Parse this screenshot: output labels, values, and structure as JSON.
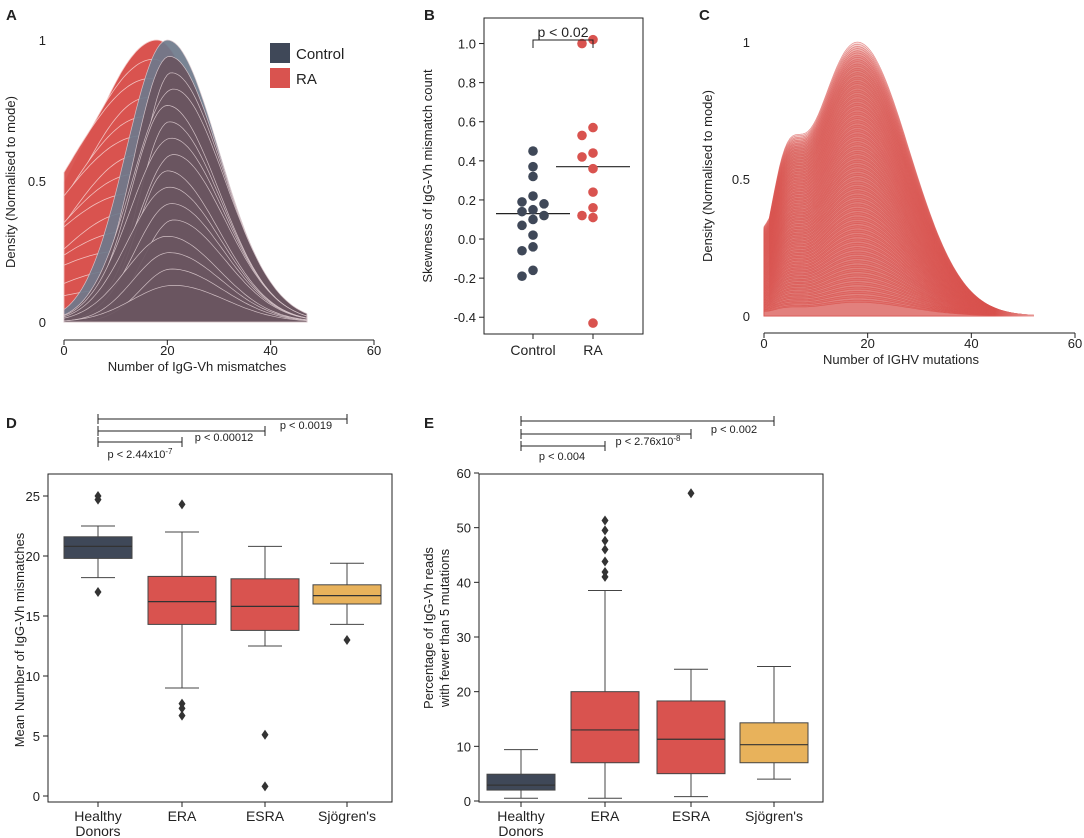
{
  "colors": {
    "control": "#3f4858",
    "ra": "#d9534f",
    "ra_light": "#e8a29e",
    "sjogren": "#e8b25b",
    "overlap": "#6a5560",
    "ink": "#222222"
  },
  "chart_data": [
    {
      "panel": "A",
      "type": "area",
      "title": "",
      "xlabel": "Number of IgG-Vh mismatches",
      "ylabel": "Density (Normalised to mode)",
      "xticks": [
        "0",
        "20",
        "40",
        "60"
      ],
      "yticks": [
        "0",
        "0.5",
        "1"
      ],
      "xlim": [
        0,
        60
      ],
      "ylim": [
        0,
        1
      ],
      "legend": {
        "position": "top-right",
        "entries": [
          "Control",
          "RA"
        ]
      },
      "series": [
        {
          "name": "Control",
          "mode": 20,
          "sd_left": 8,
          "sd_right": 10,
          "range": [
            0,
            47
          ]
        },
        {
          "name": "RA",
          "mode": 18,
          "sd_left": 14,
          "sd_right": 10,
          "range": [
            0,
            47
          ]
        }
      ]
    },
    {
      "panel": "B",
      "type": "scatter",
      "xlabel": "",
      "ylabel": "Skewness of IgG-Vh mismatch count",
      "categories": [
        "Control",
        "RA"
      ],
      "ylim": [
        -0.45,
        1.1
      ],
      "yticks": [
        "-0.4",
        "-0.2",
        "0.0",
        "0.2",
        "0.4",
        "0.6",
        "0.8",
        "1.0"
      ],
      "significance": "p < 0.02",
      "series": [
        {
          "name": "Control",
          "values": [
            0.45,
            0.37,
            0.32,
            0.22,
            0.19,
            0.18,
            0.15,
            0.14,
            0.12,
            0.1,
            0.07,
            0.02,
            -0.04,
            -0.06,
            -0.16,
            -0.19
          ],
          "mean": 0.13
        },
        {
          "name": "RA",
          "values": [
            1.02,
            1.0,
            0.57,
            0.53,
            0.44,
            0.42,
            0.36,
            0.24,
            0.16,
            0.12,
            0.11,
            -0.43
          ],
          "mean": 0.37
        }
      ]
    },
    {
      "panel": "C",
      "type": "area",
      "xlabel": "Number of IGHV mutations",
      "ylabel": "Density (Normalised to mode)",
      "xticks": [
        "0",
        "20",
        "40",
        "60"
      ],
      "yticks": [
        "0",
        "0.5",
        "1"
      ],
      "xlim": [
        0,
        60
      ],
      "ylim": [
        0,
        1
      ],
      "series": [
        {
          "name": "RA",
          "mode": 18,
          "shoulder": 4,
          "range": [
            0,
            52
          ]
        }
      ]
    },
    {
      "panel": "D",
      "type": "box",
      "xlabel": "",
      "ylabel": "Mean Number of IgG-Vh mismatches",
      "categories": [
        "Healthy Donors",
        "ERA",
        "ESRA",
        "Sjögren's"
      ],
      "ylim": [
        -0.5,
        26
      ],
      "yticks": [
        "0",
        "5",
        "10",
        "15",
        "20",
        "25"
      ],
      "significance": [
        "p < 2.44x10-7",
        "p < 0.00012",
        "p < 0.0019"
      ],
      "boxes": [
        {
          "name": "Healthy Donors",
          "q1": 19.8,
          "median": 20.8,
          "q3": 21.6,
          "whislo": 18.2,
          "whishi": 22.5,
          "fliers": [
            25.0,
            24.7,
            17.0
          ]
        },
        {
          "name": "ERA",
          "q1": 14.3,
          "median": 16.2,
          "q3": 18.3,
          "whislo": 9.0,
          "whishi": 22.0,
          "fliers": [
            24.3,
            7.7,
            7.3,
            6.7
          ]
        },
        {
          "name": "ESRA",
          "q1": 13.8,
          "median": 15.8,
          "q3": 18.1,
          "whislo": 12.5,
          "whishi": 20.8,
          "fliers": [
            5.1,
            0.8
          ]
        },
        {
          "name": "Sjögren's",
          "q1": 16.0,
          "median": 16.7,
          "q3": 17.6,
          "whislo": 14.3,
          "whishi": 19.4,
          "fliers": [
            13.0
          ]
        }
      ]
    },
    {
      "panel": "E",
      "type": "box",
      "xlabel": "",
      "ylabel": "Percentage of IgG-Vh reads",
      "ylabel2": "with fewer than 5 mutations",
      "categories": [
        "Healthy Donors",
        "ERA",
        "ESRA",
        "Sjögren's"
      ],
      "ylim": [
        0,
        60
      ],
      "yticks": [
        "0",
        "10",
        "20",
        "30",
        "40",
        "50",
        "60"
      ],
      "significance": [
        "p < 0.004",
        "p < 2.76x10-8",
        "p < 0.002"
      ],
      "boxes": [
        {
          "name": "Healthy Donors",
          "q1": 2.0,
          "median": 2.9,
          "q3": 4.9,
          "whislo": 0.5,
          "whishi": 9.4,
          "fliers": []
        },
        {
          "name": "ERA",
          "q1": 7.0,
          "median": 13.0,
          "q3": 20.0,
          "whislo": 0.5,
          "whishi": 38.5,
          "fliers": [
            51.3,
            49.5,
            47.6,
            46.0,
            43.8,
            41.9,
            41.0
          ]
        },
        {
          "name": "ESRA",
          "q1": 5.0,
          "median": 11.3,
          "q3": 18.3,
          "whislo": 0.8,
          "whishi": 24.1,
          "fliers": [
            56.3
          ]
        },
        {
          "name": "Sjögren's",
          "q1": 7.0,
          "median": 10.3,
          "q3": 14.3,
          "whislo": 4.0,
          "whishi": 24.6,
          "fliers": []
        }
      ]
    }
  ]
}
